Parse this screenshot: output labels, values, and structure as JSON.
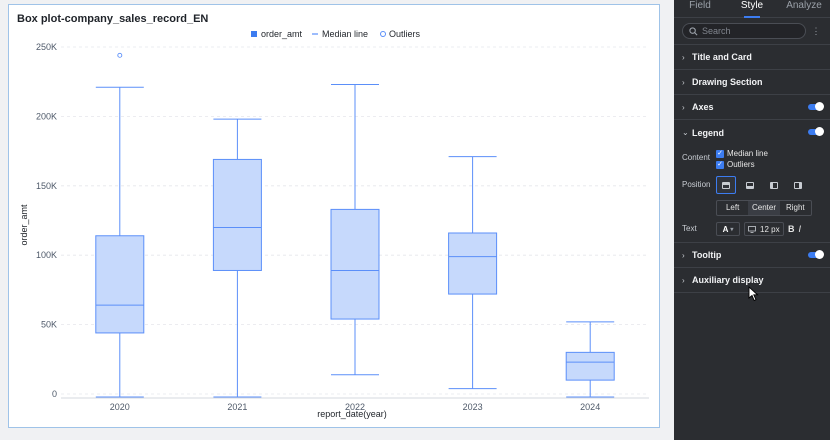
{
  "chart": {
    "title": "Box plot-company_sales_record_EN",
    "legend": {
      "items": [
        {
          "label": "order_amt",
          "marker": "square"
        },
        {
          "label": "Median line",
          "marker": "line"
        },
        {
          "label": "Outliers",
          "marker": "circle"
        }
      ]
    }
  },
  "chart_data": {
    "type": "box",
    "title": "Box plot-company_sales_record_EN",
    "xlabel": "report_date(year)",
    "ylabel": "order_amt",
    "categories": [
      "2020",
      "2021",
      "2022",
      "2023",
      "2024"
    ],
    "yticks": [
      0,
      50000,
      100000,
      150000,
      200000,
      250000
    ],
    "ytick_labels": [
      "0",
      "50K",
      "100K",
      "150K",
      "200K",
      "250K"
    ],
    "ylim": [
      0,
      250000
    ],
    "boxes": [
      {
        "category": "2020",
        "min": 0,
        "q1": 44000,
        "median": 64000,
        "q3": 114000,
        "max": 221000,
        "outliers": [
          244000
        ]
      },
      {
        "category": "2021",
        "min": 0,
        "q1": 89000,
        "median": 120000,
        "q3": 169000,
        "max": 198000,
        "outliers": []
      },
      {
        "category": "2022",
        "min": 16000,
        "q1": 54000,
        "median": 89000,
        "q3": 133000,
        "max": 223000,
        "outliers": []
      },
      {
        "category": "2023",
        "min": 6000,
        "q1": 72000,
        "median": 99000,
        "q3": 116000,
        "max": 171000,
        "outliers": []
      },
      {
        "category": "2024",
        "min": 0,
        "q1": 10000,
        "median": 23000,
        "q3": 30000,
        "max": 52000,
        "outliers": []
      }
    ],
    "grid": true,
    "legend_position": "top-center",
    "colors": {
      "box_fill": "#c6d9fc",
      "box_stroke": "#5b8ff9",
      "grid": "#e5e6eb",
      "outlier": "#5b8ff9"
    }
  },
  "panel": {
    "tabs": [
      {
        "label": "Field",
        "active": false
      },
      {
        "label": "Style",
        "active": true
      },
      {
        "label": "Analyze",
        "active": false
      }
    ],
    "search": {
      "placeholder": "Search"
    },
    "sections": {
      "title_card": "Title and Card",
      "drawing": "Drawing Section",
      "axes": "Axes",
      "legend": "Legend",
      "tooltip": "Tooltip",
      "auxiliary": "Auxiliary display"
    },
    "legend_settings": {
      "content_label": "Content",
      "content_items": [
        "Median line",
        "Outliers"
      ],
      "position_label": "Position",
      "alignment": [
        "Left",
        "Center",
        "Right"
      ],
      "alignment_selected": "Center",
      "text_label": "Text",
      "font_color_glyph": "A",
      "font_size": "12 px",
      "bold_glyph": "B",
      "italic_glyph": "I"
    },
    "accent": "#3c7cf0"
  }
}
